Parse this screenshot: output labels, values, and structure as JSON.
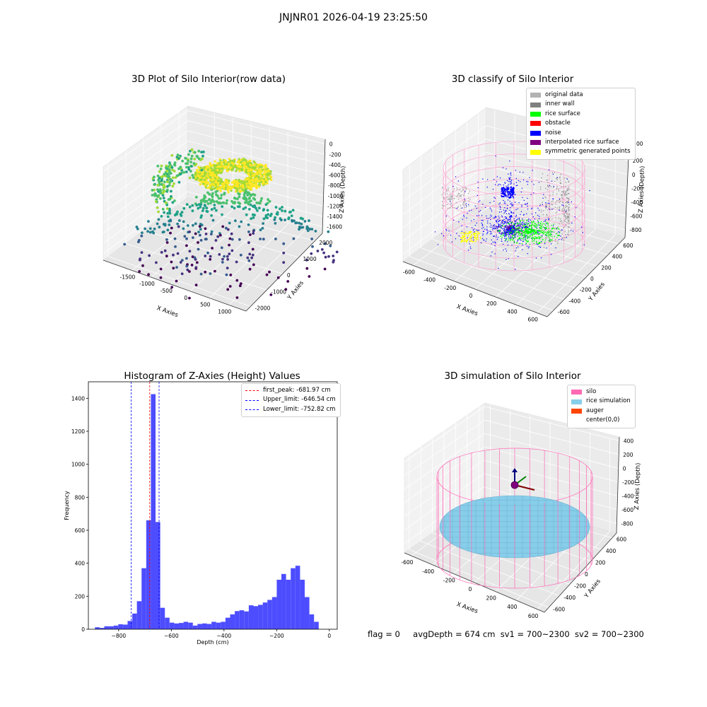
{
  "suptitle": "JNJNR01 2026-04-19 23:25:50",
  "footer": {
    "flag": "flag = 0",
    "avg": "avgDepth = 674 cm",
    "sv1": "sv1 = 700~2300",
    "sv2": "sv2 = 700~2300"
  },
  "chart_data": [
    {
      "type": "scatter",
      "projection": "3d",
      "title": "3D Plot of Silo Interior(row data)",
      "xlabel": "X Axies",
      "ylabel": "Y Axies",
      "zlabel": "Z Axies (Depth)",
      "x_ticks": [
        "-1500",
        "-1000",
        "-500",
        "0",
        "500",
        "1000"
      ],
      "y_ticks": [
        "-2000",
        "-1000",
        "0",
        "1000",
        "2000"
      ],
      "z_ticks": [
        "0",
        "-200",
        "-400",
        "-600",
        "-800",
        "-1000",
        "-1200",
        "-1400",
        "-1600"
      ],
      "colormap": "viridis",
      "zlim": [
        -1650,
        0
      ]
    },
    {
      "type": "scatter",
      "projection": "3d",
      "title": "3D classify of Silo Interior",
      "xlabel": "X Axies",
      "ylabel": "Y Axies",
      "zlabel": "Z Axies (Depth)",
      "x_ticks": [
        "-600",
        "-400",
        "-200",
        "0",
        "200",
        "400",
        "600"
      ],
      "y_ticks": [
        "-600",
        "-400",
        "-200",
        "0",
        "200",
        "400",
        "600"
      ],
      "z_ticks": [
        "200",
        "0",
        "-200",
        "-400",
        "-600",
        "-800"
      ],
      "z_top_partial": "00",
      "legend_position": "top-right",
      "legend": [
        {
          "name": "original data",
          "color": "#b3b3b3"
        },
        {
          "name": "inner wall",
          "color": "#808080"
        },
        {
          "name": "rice surface",
          "color": "#00ff00"
        },
        {
          "name": "obstacle",
          "color": "#ff0000"
        },
        {
          "name": "noise",
          "color": "#0000ff"
        },
        {
          "name": "interpolated rice surface",
          "color": "#800080"
        },
        {
          "name": "symmetric generated points",
          "color": "#ffff00"
        }
      ]
    },
    {
      "type": "bar",
      "title": "Histogram of Z-Axies (Height) Values",
      "xlabel": "Depth (cm)",
      "ylabel": "Frequency",
      "xlim": [
        -915,
        30
      ],
      "ylim": [
        0,
        1500
      ],
      "x_ticks": [
        -800,
        -600,
        -400,
        -200,
        0
      ],
      "x_tick_labels": [
        "−800",
        "−600",
        "−400",
        "−200",
        "0"
      ],
      "y_ticks": [
        0,
        200,
        400,
        600,
        800,
        1000,
        1200,
        1400
      ],
      "bar_color": "#4d4dff",
      "bin_width": 17.7,
      "bin_start": -890,
      "values": [
        12,
        8,
        18,
        18,
        22,
        30,
        28,
        50,
        95,
        170,
        370,
        660,
        1425,
        650,
        130,
        70,
        40,
        35,
        38,
        45,
        40,
        22,
        32,
        35,
        32,
        45,
        40,
        45,
        70,
        90,
        110,
        115,
        108,
        145,
        140,
        148,
        162,
        178,
        195,
        300,
        335,
        300,
        370,
        385,
        300,
        195,
        90,
        45
      ],
      "vlines": [
        {
          "x": -681.97,
          "color": "#ff0000"
        },
        {
          "x": -646.54,
          "color": "#0000ff"
        },
        {
          "x": -752.82,
          "color": "#0000ff"
        }
      ],
      "legend_position": "top-right",
      "legend": [
        {
          "name": "first_peak: -681.97 cm",
          "color": "#ff0000"
        },
        {
          "name": "Upper_limit: -646.54 cm",
          "color": "#0000ff"
        },
        {
          "name": "Lower_limit: -752.82 cm",
          "color": "#0000ff"
        }
      ]
    },
    {
      "type": "surface",
      "projection": "3d",
      "title": "3D simulation of Silo Interior",
      "xlabel": "X Axies",
      "ylabel": "Y Axies",
      "zlabel": "Z Axies (Depth)",
      "x_ticks": [
        "-600",
        "-400",
        "-200",
        "0",
        "200",
        "400",
        "600"
      ],
      "y_ticks": [
        "-600",
        "-400",
        "-200",
        "0",
        "200",
        "400",
        "600"
      ],
      "z_ticks": [
        "400",
        "200",
        "0",
        "-200",
        "-400",
        "-600",
        "-800"
      ],
      "legend_position": "top-right",
      "legend": [
        {
          "name": "silo",
          "color": "#ff69b4"
        },
        {
          "name": "rice simulation",
          "color": "#87ceeb"
        },
        {
          "name": "auger",
          "color": "#ff4500"
        },
        {
          "name": "center(0,0)",
          "color": "#ffffff"
        }
      ]
    }
  ]
}
